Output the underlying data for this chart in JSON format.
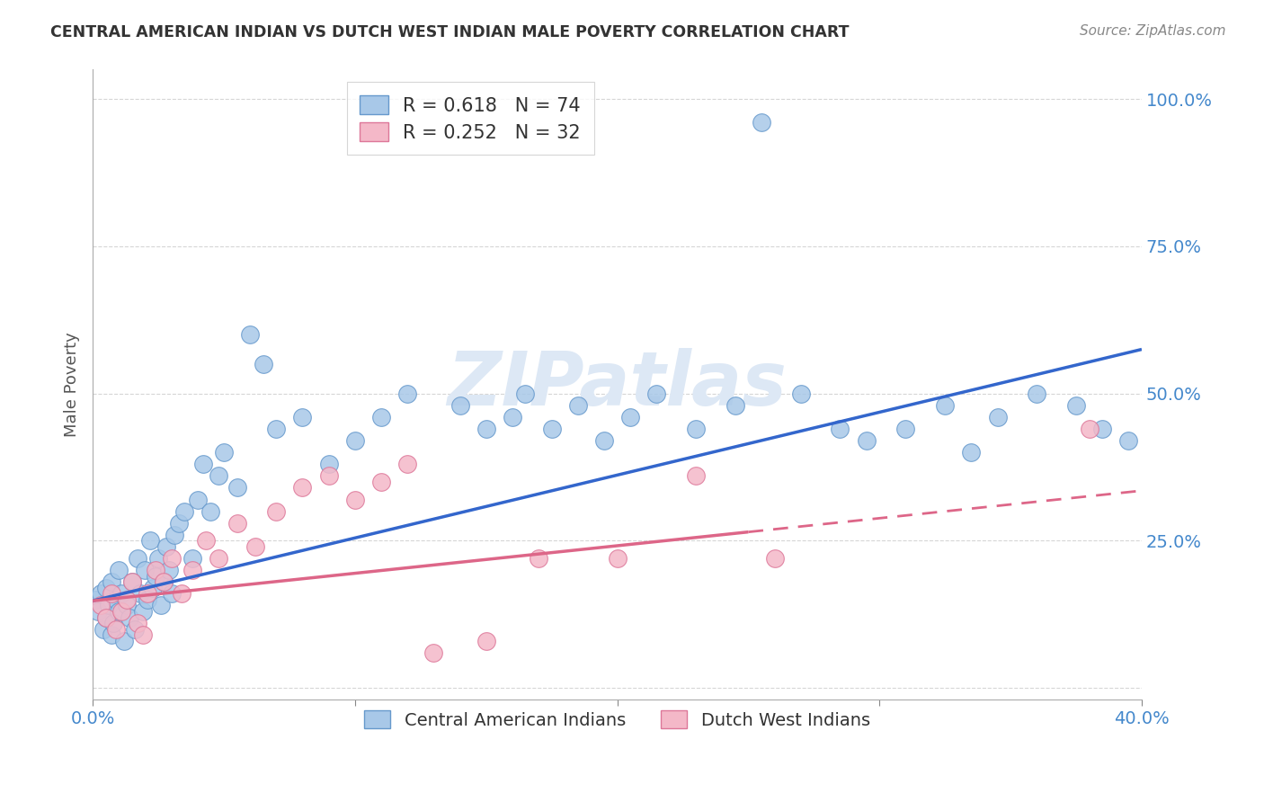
{
  "title": "CENTRAL AMERICAN INDIAN VS DUTCH WEST INDIAN MALE POVERTY CORRELATION CHART",
  "source": "Source: ZipAtlas.com",
  "ylabel": "Male Poverty",
  "xlim": [
    0.0,
    0.4
  ],
  "ylim": [
    -0.02,
    1.05
  ],
  "blue_R": 0.618,
  "blue_N": 74,
  "pink_R": 0.252,
  "pink_N": 32,
  "blue_scatter_color": "#a8c8e8",
  "pink_scatter_color": "#f4b8c8",
  "blue_edge_color": "#6699cc",
  "pink_edge_color": "#dd7799",
  "blue_line_color": "#3366cc",
  "pink_line_color": "#dd6688",
  "watermark": "ZIPatlas",
  "legend_label_blue": "Central American Indians",
  "legend_label_pink": "Dutch West Indians",
  "blue_line_x0": 0.0,
  "blue_line_y0": 0.148,
  "blue_line_x1": 0.4,
  "blue_line_y1": 0.575,
  "pink_line_x0": 0.0,
  "pink_line_y0": 0.148,
  "pink_line_x1": 0.4,
  "pink_line_y1": 0.335,
  "blue_x": [
    0.001,
    0.002,
    0.003,
    0.004,
    0.005,
    0.005,
    0.006,
    0.007,
    0.007,
    0.008,
    0.009,
    0.01,
    0.01,
    0.011,
    0.012,
    0.013,
    0.014,
    0.015,
    0.016,
    0.017,
    0.018,
    0.019,
    0.02,
    0.021,
    0.022,
    0.023,
    0.024,
    0.025,
    0.026,
    0.027,
    0.028,
    0.029,
    0.03,
    0.031,
    0.033,
    0.035,
    0.038,
    0.04,
    0.042,
    0.045,
    0.048,
    0.05,
    0.055,
    0.06,
    0.065,
    0.07,
    0.08,
    0.09,
    0.1,
    0.11,
    0.12,
    0.14,
    0.15,
    0.16,
    0.165,
    0.175,
    0.185,
    0.195,
    0.205,
    0.215,
    0.23,
    0.245,
    0.255,
    0.27,
    0.285,
    0.295,
    0.31,
    0.325,
    0.335,
    0.345,
    0.36,
    0.375,
    0.385,
    0.395
  ],
  "blue_y": [
    0.15,
    0.13,
    0.16,
    0.1,
    0.12,
    0.17,
    0.14,
    0.09,
    0.18,
    0.11,
    0.15,
    0.13,
    0.2,
    0.16,
    0.08,
    0.14,
    0.12,
    0.18,
    0.1,
    0.22,
    0.16,
    0.13,
    0.2,
    0.15,
    0.25,
    0.17,
    0.19,
    0.22,
    0.14,
    0.18,
    0.24,
    0.2,
    0.16,
    0.26,
    0.28,
    0.3,
    0.22,
    0.32,
    0.38,
    0.3,
    0.36,
    0.4,
    0.34,
    0.6,
    0.55,
    0.44,
    0.46,
    0.38,
    0.42,
    0.46,
    0.5,
    0.48,
    0.44,
    0.46,
    0.5,
    0.44,
    0.48,
    0.42,
    0.46,
    0.5,
    0.44,
    0.48,
    0.96,
    0.5,
    0.44,
    0.42,
    0.44,
    0.48,
    0.4,
    0.46,
    0.5,
    0.48,
    0.44,
    0.42
  ],
  "pink_x": [
    0.003,
    0.005,
    0.007,
    0.009,
    0.011,
    0.013,
    0.015,
    0.017,
    0.019,
    0.021,
    0.024,
    0.027,
    0.03,
    0.034,
    0.038,
    0.043,
    0.048,
    0.055,
    0.062,
    0.07,
    0.08,
    0.09,
    0.1,
    0.11,
    0.12,
    0.13,
    0.15,
    0.17,
    0.2,
    0.23,
    0.26,
    0.38
  ],
  "pink_y": [
    0.14,
    0.12,
    0.16,
    0.1,
    0.13,
    0.15,
    0.18,
    0.11,
    0.09,
    0.16,
    0.2,
    0.18,
    0.22,
    0.16,
    0.2,
    0.25,
    0.22,
    0.28,
    0.24,
    0.3,
    0.34,
    0.36,
    0.32,
    0.35,
    0.38,
    0.06,
    0.08,
    0.22,
    0.22,
    0.36,
    0.22,
    0.44
  ]
}
